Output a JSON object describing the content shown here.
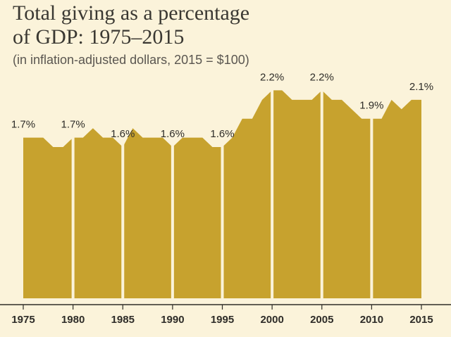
{
  "chart_data": {
    "type": "area",
    "title_line1": "Total giving as a percentage",
    "title_line2": "of GDP: 1975–2015",
    "subtitle": "(in inflation-adjusted dollars, 2015 = $100)",
    "xlabel": "",
    "ylabel": "",
    "ylim": [
      0,
      2.3
    ],
    "xlim": [
      1975,
      2015
    ],
    "grid": false,
    "series": [
      {
        "name": "Total giving as % of GDP",
        "color": "#c7a22e",
        "x": [
          1975,
          1976,
          1977,
          1978,
          1979,
          1980,
          1981,
          1982,
          1983,
          1984,
          1985,
          1986,
          1987,
          1988,
          1989,
          1990,
          1991,
          1992,
          1993,
          1994,
          1995,
          1996,
          1997,
          1998,
          1999,
          2000,
          2001,
          2002,
          2003,
          2004,
          2005,
          2006,
          2007,
          2008,
          2009,
          2010,
          2011,
          2012,
          2013,
          2014,
          2015
        ],
        "values": [
          1.7,
          1.7,
          1.7,
          1.6,
          1.6,
          1.7,
          1.7,
          1.8,
          1.7,
          1.7,
          1.6,
          1.8,
          1.7,
          1.7,
          1.7,
          1.6,
          1.7,
          1.7,
          1.7,
          1.6,
          1.6,
          1.7,
          1.9,
          1.9,
          2.1,
          2.2,
          2.2,
          2.1,
          2.1,
          2.1,
          2.2,
          2.1,
          2.1,
          2.0,
          1.9,
          1.9,
          1.9,
          2.1,
          2.0,
          2.1,
          2.1
        ]
      }
    ],
    "x_ticks": [
      1975,
      1980,
      1985,
      1990,
      1995,
      2000,
      2005,
      2010,
      2015
    ],
    "tick_labels": [
      "1975",
      "1980",
      "1985",
      "1990",
      "1995",
      "2000",
      "2005",
      "2010",
      "2015"
    ],
    "annotations": [
      {
        "x": 1975,
        "y": 1.7,
        "text": "1.7%"
      },
      {
        "x": 1980,
        "y": 1.7,
        "text": "1.7%"
      },
      {
        "x": 1985,
        "y": 1.6,
        "text": "1.6%"
      },
      {
        "x": 1990,
        "y": 1.6,
        "text": "1.6%"
      },
      {
        "x": 1995,
        "y": 1.6,
        "text": "1.6%"
      },
      {
        "x": 2000,
        "y": 2.2,
        "text": "2.2%"
      },
      {
        "x": 2005,
        "y": 2.2,
        "text": "2.2%"
      },
      {
        "x": 2010,
        "y": 1.9,
        "text": "1.9%"
      },
      {
        "x": 2015,
        "y": 2.1,
        "text": "2.1%"
      }
    ],
    "colors": {
      "fill": "#c7a22e",
      "divider": "#fbf3da",
      "axis": "#2e2c28",
      "background": "#fbf3da"
    }
  }
}
